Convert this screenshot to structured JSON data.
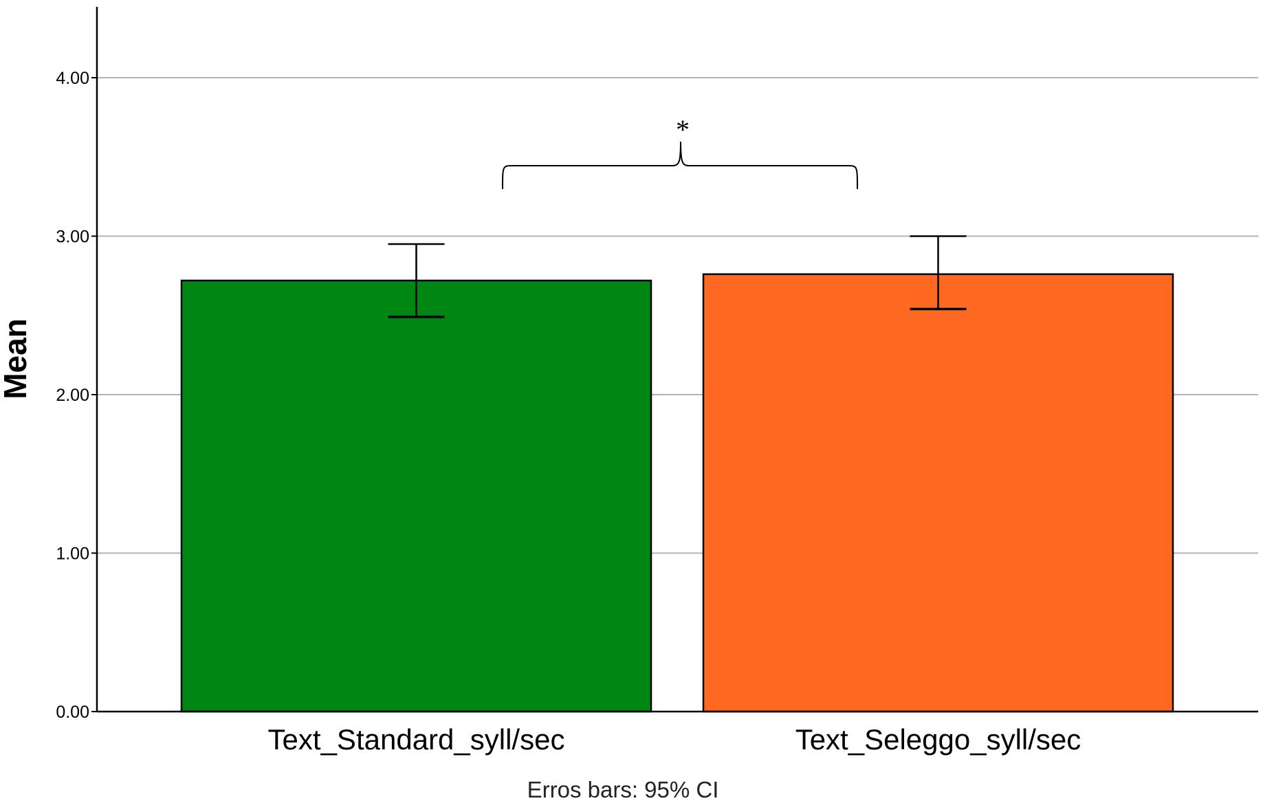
{
  "chart_data": {
    "type": "bar",
    "categories": [
      "Text_Standard_syll/sec",
      "Text_Seleggo_syll/sec"
    ],
    "values": [
      2.72,
      2.76
    ],
    "error_bars": {
      "lower": [
        2.49,
        2.54
      ],
      "upper": [
        2.95,
        3.0
      ]
    },
    "colors": [
      "#008612",
      "#FF6820"
    ],
    "title": "",
    "xlabel": "",
    "ylabel": "Mean",
    "ylim": [
      0,
      4.45
    ],
    "yticks": [
      "0.00",
      "1.00",
      "2.00",
      "3.00",
      "4.00"
    ],
    "grid": true,
    "footnote": "Erros bars: 95% CI",
    "significance_marker": "*"
  }
}
